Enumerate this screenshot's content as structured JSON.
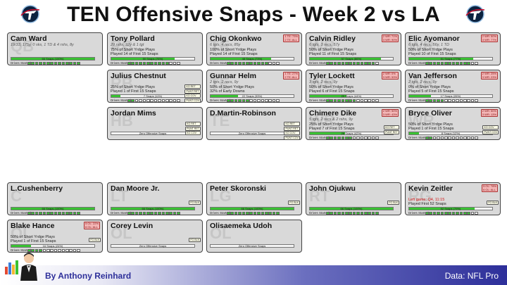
{
  "title": "TEN Offensive Snaps - Week 2 vs LA",
  "footer": {
    "byline": "By Anthony Reinhard",
    "source": "Data: NFL Pro"
  },
  "drives_label": "Drives Started:",
  "players": {
    "ward": {
      "name": "Cam Ward",
      "pos": "QB",
      "stats": "19/33, 175y, 0 sks, 1 TD & 4 rshs, 8y",
      "bar": "66 Snaps (100%)",
      "pct": 100,
      "drives": 14,
      "drives_on": 14
    },
    "pollard": {
      "name": "Tony Pollard",
      "pos": "RB",
      "stats": "29 rshs, 92y & 1 tgt",
      "l1": "75% of Short Yrdge Plays",
      "l2": "Played 14 of First 15 Snaps",
      "bar": "50 Snaps (76%)",
      "pct": 76,
      "drives": 14,
      "drives_on": 11
    },
    "okonkwo": {
      "name": "Chig Okonkwo",
      "pos": "TE",
      "rank": [
        "1 TE: 73%",
        "2 TE: ALL"
      ],
      "stats": "6 tgts, 4 recs, 85y",
      "l1": "100% of Short Yrdge Plays",
      "l2": "Played 14 of First 15 Snaps",
      "bar": "48 Snaps (73%)",
      "pct": 73,
      "drives": 14,
      "drives_on": 11
    },
    "ridley": {
      "name": "Calvin Ridley",
      "pos": "WR",
      "rank": [
        "2 WR: 71%",
        "3 WR: 90%"
      ],
      "stats": "6 tgts, 3 recs, 57y",
      "l1": "50% of Short Yrdge Plays",
      "l2": "Played 11 of First 15 Snaps",
      "bar": "57 Snaps (86%)",
      "pct": 86,
      "drives": 14,
      "drives_on": 13
    },
    "ayomanor": {
      "name": "Elic Ayomanor",
      "pos": "WR",
      "rank": [
        "2 WR: 50%",
        "3 WR: 77%"
      ],
      "stats": "6 tgts, 4 recs, 56y, 1 TD",
      "l1": "50% of Short Yrdge Plays",
      "l2": "Played 10 of First 15 Snaps",
      "bar": "51 Snaps (77%)",
      "pct": 77,
      "drives": 14,
      "drives_on": 12
    },
    "chestnut": {
      "name": "Julius Chestnut",
      "pos": "RB",
      "l1": "25% of Short Yrdge Plays",
      "l2": "Played 1 of First 15 Snaps",
      "bar": "7 Snaps (11%)",
      "pct": 11,
      "tags": [
        "KO RET",
        "PUNT RET",
        "KO COV",
        "PUNT COV"
      ],
      "drives": 14,
      "drives_on": 2
    },
    "helm": {
      "name": "Gunnar Helm",
      "pos": "TE",
      "rank": [
        "1 TE: 27%",
        "2 TE: ALL"
      ],
      "stats": "2 tgts, 2 recs, 9y",
      "l1": "50% of Short Yrdge Plays",
      "l2": "32% of Early Downs",
      "bar": "22 Snaps (33%)",
      "pct": 33,
      "drives": 14,
      "drives_on": 6
    },
    "lockett": {
      "name": "Tyler Lockett",
      "pos": "WR",
      "rank": [
        "2 WR: 0%",
        "3 WR: 53%"
      ],
      "stats": "3 tgts, 2 recs, 9y",
      "l1": "50% of Short Yrdge Plays",
      "l2": "Played 6 of First 15 Snaps",
      "bar": "29 Snaps (44%)",
      "pct": 44,
      "drives": 14,
      "drives_on": 8
    },
    "jefferson": {
      "name": "Van Jefferson",
      "pos": "WR",
      "rank": [
        "2 WR: 25%",
        "3 WR: 23%"
      ],
      "stats": "2 tgts, 2 recs, 9y",
      "l1": "0% of Short Yrdge Plays",
      "l2": "Played 5 of First 15 Snaps",
      "bar": "17 Snaps (26%)",
      "pct": 26,
      "drives": 14,
      "drives_on": 5
    },
    "mims": {
      "name": "Jordan Mims",
      "pos": "HB",
      "bar": "Zero Offensive Snaps",
      "pct": 0,
      "tags": [
        "KO RET",
        "PUNT RET",
        "KO COV"
      ]
    },
    "robinson": {
      "name": "D.Martin-Robinson",
      "pos": "TE",
      "bar": "Zero Offensive Snaps",
      "pct": 0,
      "tags": [
        "KO RET",
        "PUNT RET",
        "KO COV",
        "PUNT COV"
      ]
    },
    "dike": {
      "name": "Chimere Dike",
      "pos": "WR",
      "rank": [
        "2 WR: 50%",
        "3 WR: 43%"
      ],
      "stats": "5 tgts, 2 recs & 2 rshs, 9y",
      "l1": "25% of Short Yrdge Plays",
      "l2": "Played 7 of First 15 Snaps",
      "bar": "28 Snaps (42%)",
      "pct": 42,
      "tags": [
        "KO RET",
        "PUNT RET"
      ],
      "drives": 14,
      "drives_on": 7
    },
    "oliver": {
      "name": "Bryce Oliver",
      "pos": "WR",
      "rank": [
        "2 WR: 50%",
        "3 WR: 13%"
      ],
      "l1": "50% of Short Yrdge Plays",
      "l2": "Played 1 of First 15 Snaps",
      "bar": "8 Snaps (12%)",
      "pct": 12,
      "tags": [
        "KO COV",
        "PUNT COV"
      ],
      "drives": 14,
      "drives_on": 2
    },
    "cushenberry": {
      "name": "L.Cushenberry",
      "pos": "C",
      "bar": "66 Snaps (100%)",
      "pct": 100,
      "drives": 14,
      "drives_on": 14
    },
    "moore": {
      "name": "Dan Moore Jr.",
      "pos": "LT",
      "bar": "66 Snaps (100%)",
      "pct": 100,
      "tags": [
        "FG BLK"
      ],
      "drives": 14,
      "drives_on": 14
    },
    "skoronski": {
      "name": "Peter Skoronski",
      "pos": "LG",
      "bar": "66 Snaps (100%)",
      "pct": 100,
      "tags": [
        "FG BLK"
      ],
      "drives": 14,
      "drives_on": 14
    },
    "ojukwu": {
      "name": "John Ojukwu",
      "pos": "RT",
      "bar": "66 Snaps (100%)",
      "pct": 100,
      "tags": [
        "FG BLK"
      ],
      "drives": 14,
      "drives_on": 14
    },
    "zeitler": {
      "name": "Kevin Zeitler",
      "pos": "RG",
      "rank": [
        "5 OL: 78%",
        "6 OL: ALL"
      ],
      "red": "Left game: Q4, 11:15",
      "l2": "Played First 52 Snaps",
      "bar": "52 Snaps (79%)",
      "pct": 79,
      "tags": [
        "FG BLK"
      ],
      "drives": 14,
      "drives_on": 12
    },
    "hance": {
      "name": "Blake Hance",
      "pos": "OL",
      "rank": [
        "5 OL: 22%",
        "6 OL: ALL"
      ],
      "l1": "50% of Short Yrdge Plays",
      "l2": "Played 1 of First 15 Snaps",
      "bar": "16 Snaps (24%)",
      "pct": 24,
      "tags": [
        "FG BLK"
      ],
      "drives": 14,
      "drives_on": 4
    },
    "levin": {
      "name": "Corey Levin",
      "pos": "OL",
      "bar": "Zero Offensive Snaps",
      "pct": 0,
      "tags": [
        "FG BLK"
      ]
    },
    "udoh": {
      "name": "Olisaemeka Udoh",
      "pos": "OL",
      "bar": "Zero Offensive Snaps",
      "pct": 0
    }
  },
  "colors": {
    "fill": "#39c232",
    "card": "#d9d9d9",
    "rank": "#f4b6b6",
    "footer_accent": "#2d2f9a"
  }
}
